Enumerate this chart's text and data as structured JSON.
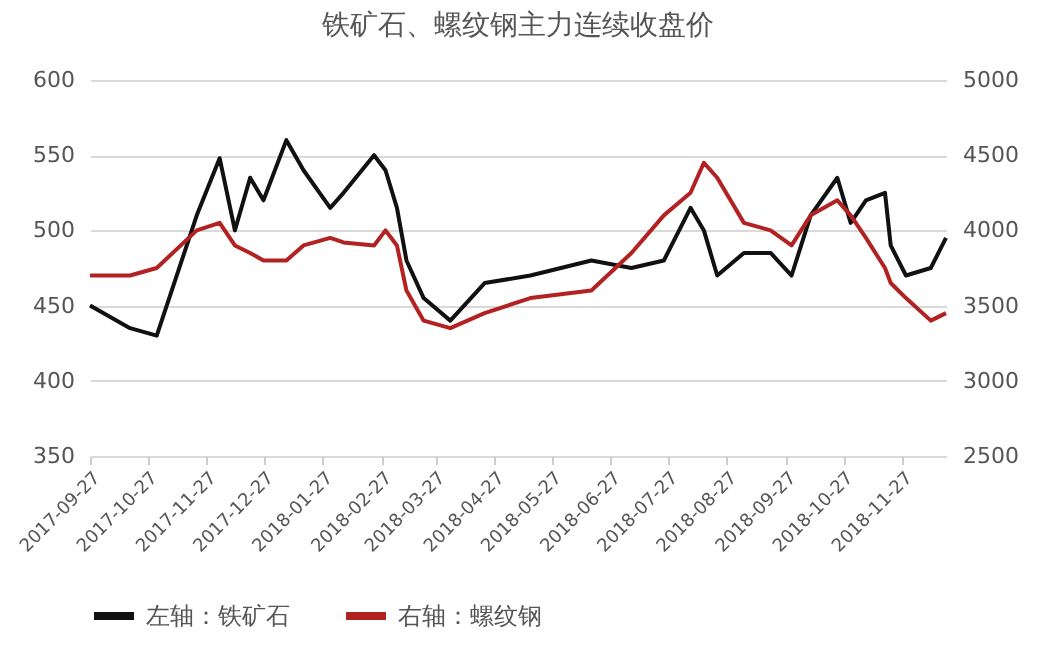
{
  "chart_data": {
    "type": "line",
    "title": "铁矿石、螺纹钢主力连续收盘价",
    "x": [
      "2017-09-27",
      "2017-10-18",
      "2017-11-01",
      "2017-11-22",
      "2017-12-04",
      "2017-12-12",
      "2017-12-20",
      "2017-12-27",
      "2018-01-08",
      "2018-01-17",
      "2018-01-31",
      "2018-02-07",
      "2018-02-23",
      "2018-03-01",
      "2018-03-07",
      "2018-03-12",
      "2018-03-21",
      "2018-04-04",
      "2018-04-22",
      "2018-05-16",
      "2018-06-17",
      "2018-07-08",
      "2018-07-25",
      "2018-08-08",
      "2018-08-15",
      "2018-08-22",
      "2018-09-05",
      "2018-09-19",
      "2018-09-30",
      "2018-10-10",
      "2018-10-24",
      "2018-10-31",
      "2018-11-08",
      "2018-11-18",
      "2018-11-21",
      "2018-11-29",
      "2018-12-12",
      "2018-12-20"
    ],
    "series": [
      {
        "name": "左轴：铁矿石",
        "color": "#111111",
        "values": [
          450,
          435,
          430,
          510,
          548,
          500,
          535,
          520,
          560,
          540,
          515,
          525,
          550,
          540,
          515,
          480,
          455,
          440,
          465,
          470,
          480,
          475,
          480,
          515,
          500,
          470,
          485,
          485,
          470,
          510,
          535,
          505,
          520,
          525,
          490,
          470,
          475,
          495
        ]
      },
      {
        "name": "右轴：螺纹钢",
        "color": "#b22222",
        "axis": "y2",
        "values": [
          3700,
          3700,
          3750,
          4000,
          4050,
          3900,
          3850,
          3800,
          3800,
          3900,
          3950,
          3920,
          3900,
          4000,
          3900,
          3600,
          3400,
          3350,
          3450,
          3550,
          3600,
          3850,
          4100,
          4250,
          4450,
          4350,
          4050,
          4000,
          3900,
          4100,
          4200,
          4100,
          3950,
          3750,
          3650,
          3550,
          3400,
          3450
        ]
      }
    ],
    "xlim": [
      "2017-09-27",
      "2018-12-20"
    ],
    "xticks": [
      "2017-09-27",
      "2017-10-27",
      "2017-11-27",
      "2017-12-27",
      "2018-01-27",
      "2018-02-27",
      "2018-03-27",
      "2018-04-27",
      "2018-05-27",
      "2018-06-27",
      "2018-07-27",
      "2018-08-27",
      "2018-09-27",
      "2018-10-27",
      "2018-11-27"
    ],
    "ylim": [
      350,
      600
    ],
    "yticks": [
      350,
      400,
      450,
      500,
      550,
      600
    ],
    "y2lim": [
      2500,
      5000
    ],
    "y2ticks": [
      2500,
      3000,
      3500,
      4000,
      4500,
      5000
    ],
    "grid": "y",
    "legend": "bottom",
    "marker": "none",
    "line_style": "solid"
  }
}
